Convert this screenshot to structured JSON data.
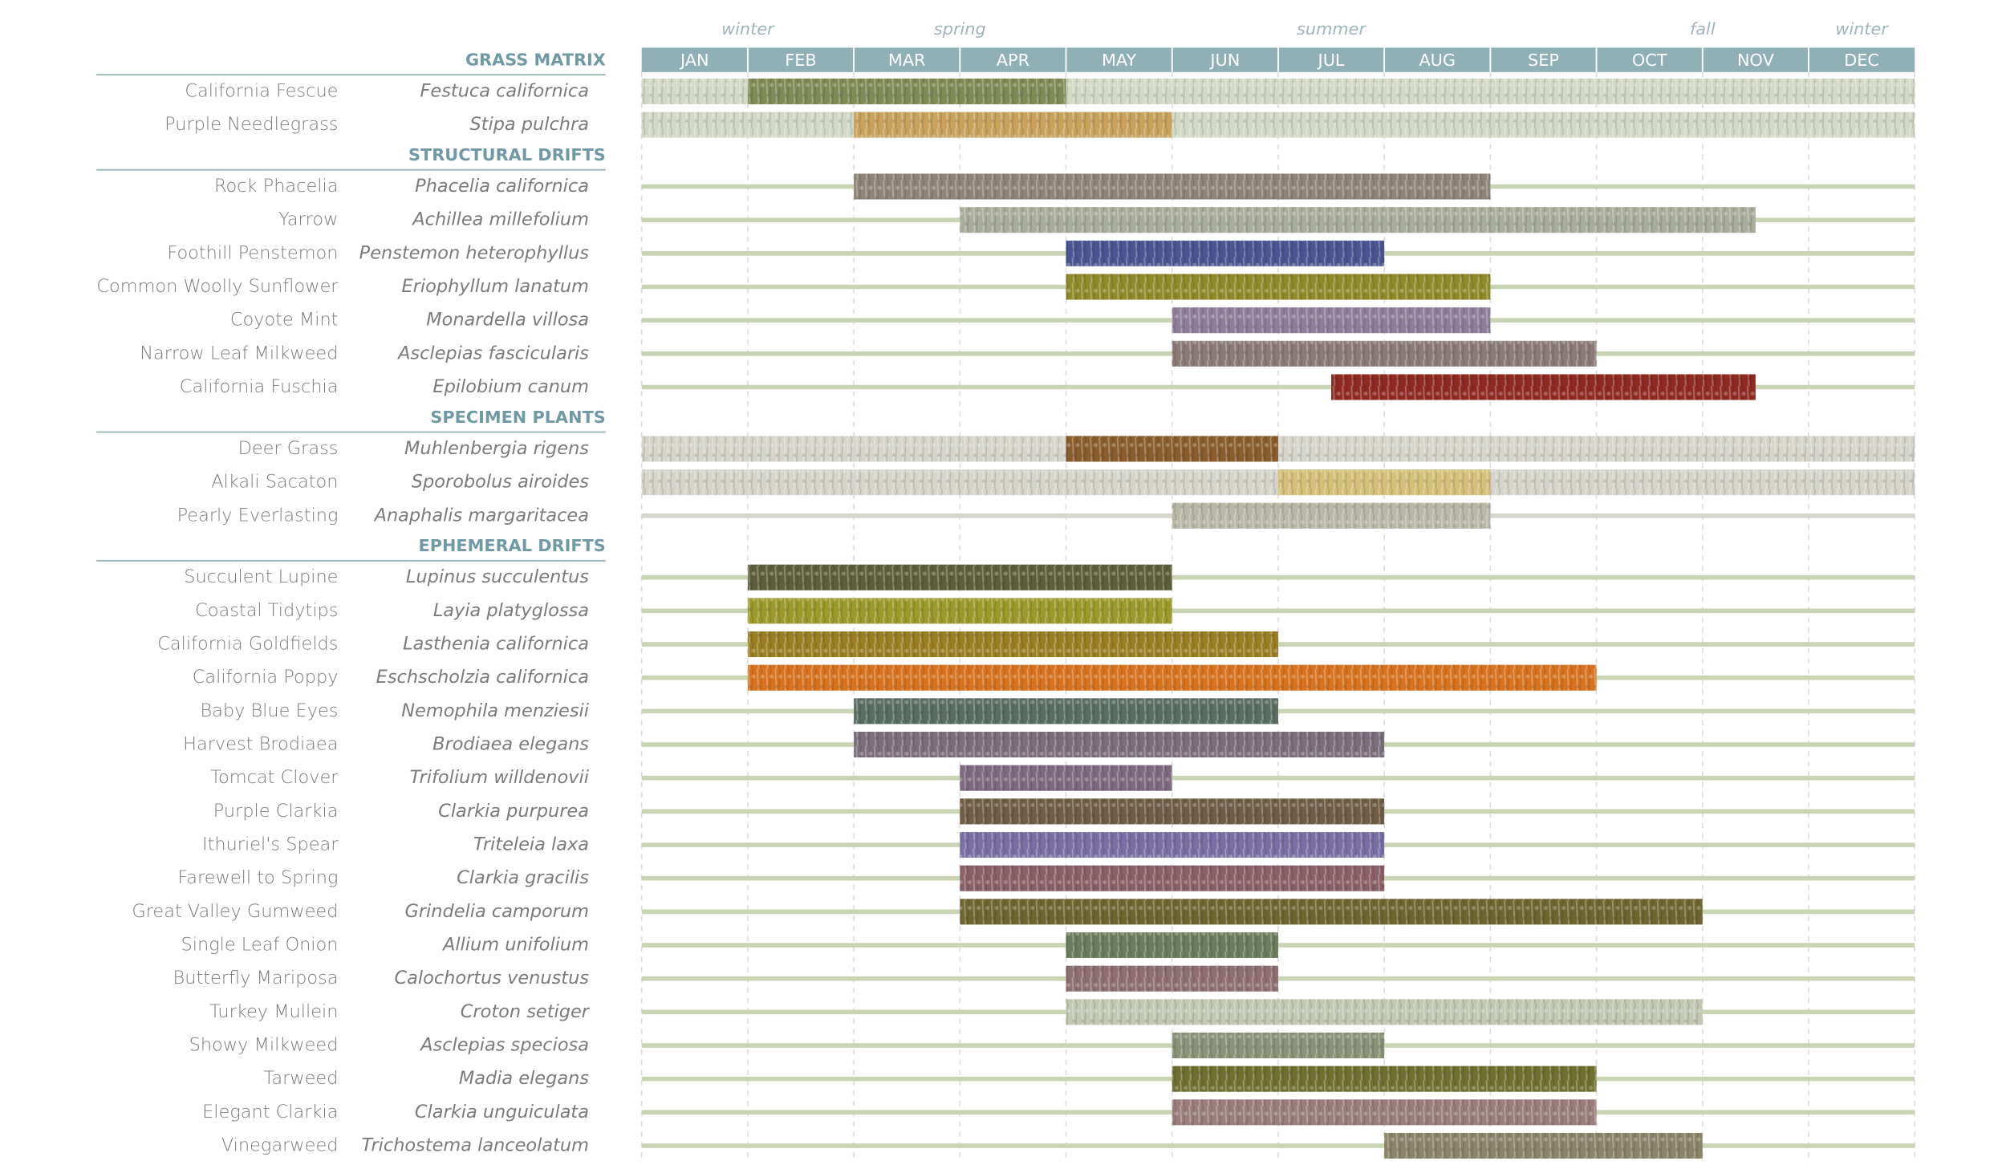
{
  "chart_data": {
    "type": "gantt",
    "categories": [
      "JAN",
      "FEB",
      "MAR",
      "APR",
      "MAY",
      "JUN",
      "JUL",
      "AUG",
      "SEP",
      "OCT",
      "NOV",
      "DEC"
    ],
    "xlim": [
      0,
      12
    ],
    "seasons": [
      {
        "label": "winter",
        "at": 1
      },
      {
        "label": "spring",
        "at": 3
      },
      {
        "label": "summer",
        "at": 6.5
      },
      {
        "label": "fall",
        "at": 10
      },
      {
        "label": "winter",
        "at": 11.5
      }
    ],
    "grid": true,
    "groups": [
      {
        "name": "GRASS MATRIX",
        "base_color": "#d3d9c6",
        "rows": [
          {
            "common": "California Fescue",
            "latin": "Festuca californica",
            "start": 1,
            "end": 4,
            "color": "#7f8a55",
            "full": true
          },
          {
            "common": "Purple Needlegrass",
            "latin": "Stipa pulchra",
            "start": 2,
            "end": 5,
            "color": "#c9a35c",
            "full": true
          }
        ]
      },
      {
        "name": "STRUCTURAL DRIFTS",
        "base_color": "#c8d4b4",
        "rows": [
          {
            "common": "Rock Phacelia",
            "latin": "Phacelia californica",
            "start": 2,
            "end": 8,
            "color": "#8f8478",
            "full": false
          },
          {
            "common": "Yarrow",
            "latin": "Achillea millefolium",
            "start": 3,
            "end": 10.5,
            "color": "#a9ad9c",
            "full": false
          },
          {
            "common": "Foothill Penstemon",
            "latin": "Penstemon heterophyllus",
            "start": 4,
            "end": 7,
            "color": "#4a5592",
            "full": false
          },
          {
            "common": "Common Woolly Sunflower",
            "latin": "Eriophyllum lanatum",
            "start": 4,
            "end": 8,
            "color": "#8e8a2a",
            "full": false
          },
          {
            "common": "Coyote Mint",
            "latin": "Monardella villosa",
            "start": 5,
            "end": 8,
            "color": "#8f7e9a",
            "full": false
          },
          {
            "common": "Narrow Leaf Milkweed",
            "latin": "Asclepias fascicularis",
            "start": 5,
            "end": 9,
            "color": "#8a7b78",
            "full": false
          },
          {
            "common": "California Fuschia",
            "latin": "Epilobium canum",
            "start": 6.5,
            "end": 10.5,
            "color": "#8f2a22",
            "full": false
          }
        ]
      },
      {
        "name": "SPECIMEN PLANTS",
        "base_color": "#d5d5cc",
        "rows": [
          {
            "common": "Deer Grass",
            "latin": "Muhlenbergia rigens",
            "start": 4,
            "end": 6,
            "color": "#8a5d2d",
            "full": true
          },
          {
            "common": "Alkali Sacaton",
            "latin": "Sporobolus airoides",
            "start": 6,
            "end": 8,
            "color": "#d4c078",
            "full": true
          },
          {
            "common": "Pearly Everlasting",
            "latin": "Anaphalis margaritacea",
            "start": 5,
            "end": 8,
            "color": "#b9b7a8",
            "full": false
          }
        ]
      },
      {
        "name": "EPHEMERAL DRIFTS",
        "base_color": "#c8d4b4",
        "rows": [
          {
            "common": "Succulent Lupine",
            "latin": "Lupinus succulentus",
            "start": 1,
            "end": 5,
            "color": "#5d5f3c",
            "full": false
          },
          {
            "common": "Coastal Tidytips",
            "latin": "Layia platyglossa",
            "start": 1,
            "end": 5,
            "color": "#9c9a2a",
            "full": false
          },
          {
            "common": "California Goldfields",
            "latin": "Lasthenia californica",
            "start": 1,
            "end": 6,
            "color": "#9a7e22",
            "full": false
          },
          {
            "common": "California Poppy",
            "latin": "Eschscholzia californica",
            "start": 1,
            "end": 9,
            "color": "#d7731f",
            "full": false
          },
          {
            "common": "Baby Blue Eyes",
            "latin": "Nemophila menziesii",
            "start": 2,
            "end": 6,
            "color": "#5a6d63",
            "full": false
          },
          {
            "common": "Harvest Brodiaea",
            "latin": "Brodiaea elegans",
            "start": 2,
            "end": 7,
            "color": "#7b6f7c",
            "full": false
          },
          {
            "common": "Tomcat Clover",
            "latin": "Trifolium willdenovii",
            "start": 3,
            "end": 5,
            "color": "#7d6a7e",
            "full": false
          },
          {
            "common": "Purple Clarkia",
            "latin": "Clarkia purpurea",
            "start": 3,
            "end": 7,
            "color": "#6f5d45",
            "full": false
          },
          {
            "common": "Ithuriel's Spear",
            "latin": "Triteleia laxa",
            "start": 3,
            "end": 7,
            "color": "#7a6fa3",
            "full": false
          },
          {
            "common": "Farewell to Spring",
            "latin": "Clarkia gracilis",
            "start": 3,
            "end": 7,
            "color": "#8a6068",
            "full": false
          },
          {
            "common": "Great Valley Gumweed",
            "latin": "Grindelia camporum",
            "start": 3,
            "end": 10,
            "color": "#6e6630",
            "full": false
          },
          {
            "common": "Single Leaf Onion",
            "latin": "Allium unifolium",
            "start": 4,
            "end": 6,
            "color": "#6b7d5c",
            "full": false
          },
          {
            "common": "Butterfly Mariposa",
            "latin": "Calochortus venustus",
            "start": 4,
            "end": 6,
            "color": "#8f6f72",
            "full": false
          },
          {
            "common": "Turkey Mullein",
            "latin": "Croton setiger",
            "start": 4,
            "end": 10,
            "color": "#c2c8b4",
            "full": false
          },
          {
            "common": "Showy Milkweed",
            "latin": "Asclepias speciosa",
            "start": 5,
            "end": 7,
            "color": "#8a9278",
            "full": false
          },
          {
            "common": "Tarweed",
            "latin": "Madia elegans",
            "start": 5,
            "end": 9,
            "color": "#6f7030",
            "full": false
          },
          {
            "common": "Elegant Clarkia",
            "latin": "Clarkia unguiculata",
            "start": 5,
            "end": 9,
            "color": "#9a7d7c",
            "full": false
          },
          {
            "common": "Vinegarweed",
            "latin": "Trichostema lanceolatum",
            "start": 7,
            "end": 10,
            "color": "#8a8468",
            "full": false
          }
        ]
      }
    ]
  }
}
